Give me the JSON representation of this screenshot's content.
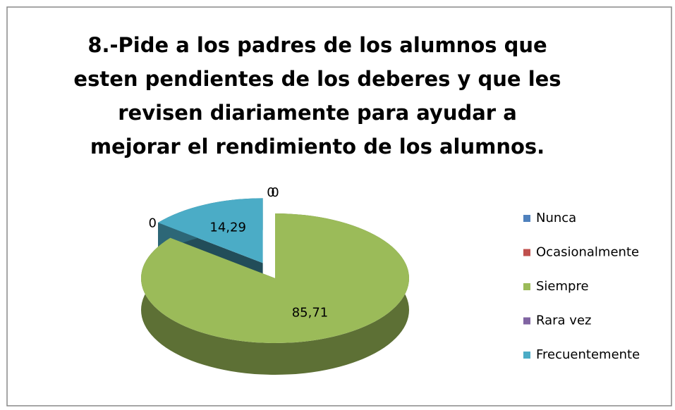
{
  "chart_data": {
    "type": "pie3d",
    "title": "8.-Pide a los padres de los alumnos que esten pendientes de los deberes y que les revisen diariamente  para ayudar a mejorar el rendimiento de los alumnos.",
    "categories": [
      "Nunca",
      "Ocasionalmente",
      "Siempre",
      "Rara vez",
      "Frecuentemente"
    ],
    "values": [
      0,
      0,
      85.71,
      0,
      14.29
    ],
    "value_labels": [
      "0",
      "0",
      "85,71",
      "0",
      "14,29"
    ],
    "colors": [
      "#4f81bd",
      "#c0504d",
      "#9bbb59",
      "#8064a2",
      "#4bacc6"
    ],
    "exploded": "Frecuentemente",
    "legend": "right"
  }
}
